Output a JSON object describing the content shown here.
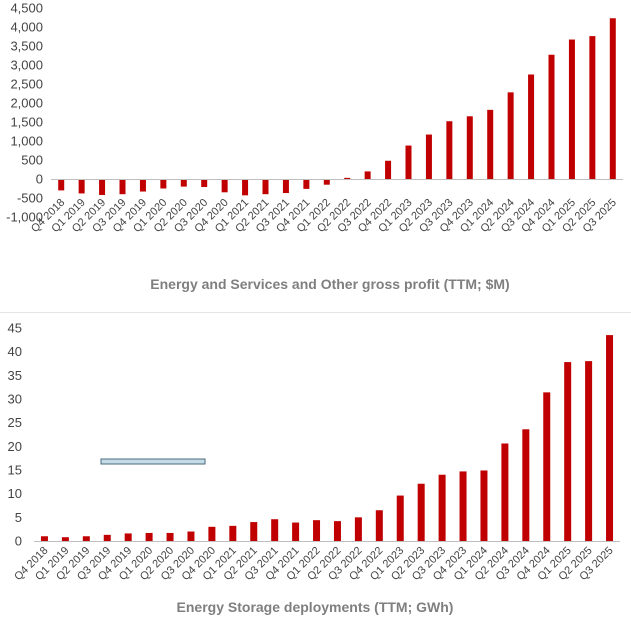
{
  "colors": {
    "bar": "#c00000",
    "legend_fill": "#c5dbe6",
    "legend_stroke": "#4a6b7d"
  },
  "chart_data": [
    {
      "type": "bar",
      "title": "Energy and Services and Other gross profit (TTM; $M)",
      "xlabel": "",
      "ylabel": "",
      "ylim": [
        -1000,
        4500
      ],
      "yticks": [
        -1000,
        -500,
        0,
        500,
        1000,
        1500,
        2000,
        2500,
        3000,
        3500,
        4000,
        4500
      ],
      "ytick_labels": [
        "-1,000",
        "-500",
        "0",
        "500",
        "1,000",
        "1,500",
        "2,000",
        "2,500",
        "3,000",
        "3,500",
        "4,000",
        "4,500"
      ],
      "categories": [
        "Q4 2018",
        "Q1 2019",
        "Q2 2019",
        "Q3 2019",
        "Q4 2019",
        "Q1 2020",
        "Q2 2020",
        "Q3 2020",
        "Q4 2020",
        "Q1 2021",
        "Q2 2021",
        "Q3 2021",
        "Q4 2021",
        "Q1 2022",
        "Q2 2022",
        "Q3 2022",
        "Q4 2022",
        "Q1 2023",
        "Q2 2023",
        "Q3 2023",
        "Q4 2023",
        "Q1 2024",
        "Q2 2024",
        "Q3 2024",
        "Q4 2024",
        "Q1 2025",
        "Q2 2025",
        "Q3 2025"
      ],
      "values": [
        -300,
        -380,
        -420,
        -400,
        -330,
        -250,
        -200,
        -210,
        -350,
        -430,
        -400,
        -370,
        -260,
        -150,
        30,
        200,
        480,
        880,
        1170,
        1520,
        1650,
        1820,
        2280,
        2750,
        3270,
        3670,
        3760,
        4230
      ]
    },
    {
      "type": "bar",
      "title": "Energy Storage deployments (TTM; GWh)",
      "xlabel": "",
      "ylabel": "",
      "ylim": [
        0,
        45
      ],
      "yticks": [
        0,
        5,
        10,
        15,
        20,
        25,
        30,
        35,
        40,
        45
      ],
      "ytick_labels": [
        "0",
        "5",
        "10",
        "15",
        "20",
        "25",
        "30",
        "35",
        "40",
        "45"
      ],
      "categories": [
        "Q4 2018",
        "Q1 2019",
        "Q2 2019",
        "Q3 2019",
        "Q4 2019",
        "Q1 2020",
        "Q2 2020",
        "Q3 2020",
        "Q4 2020",
        "Q1 2021",
        "Q2 2021",
        "Q3 2021",
        "Q4 2021",
        "Q1 2022",
        "Q2 2022",
        "Q3 2022",
        "Q4 2022",
        "Q1 2023",
        "Q2 2023",
        "Q3 2023",
        "Q4 2023",
        "Q1 2024",
        "Q2 2024",
        "Q3 2024",
        "Q4 2024",
        "Q1 2025",
        "Q2 2025",
        "Q3 2025"
      ],
      "values": [
        1.0,
        0.8,
        1.0,
        1.3,
        1.6,
        1.7,
        1.7,
        2.0,
        3.0,
        3.2,
        4.0,
        4.6,
        3.9,
        4.4,
        4.2,
        5.0,
        6.5,
        9.6,
        12.1,
        14.0,
        14.7,
        14.9,
        20.6,
        23.6,
        31.4,
        37.8,
        38.0,
        43.5
      ]
    }
  ]
}
